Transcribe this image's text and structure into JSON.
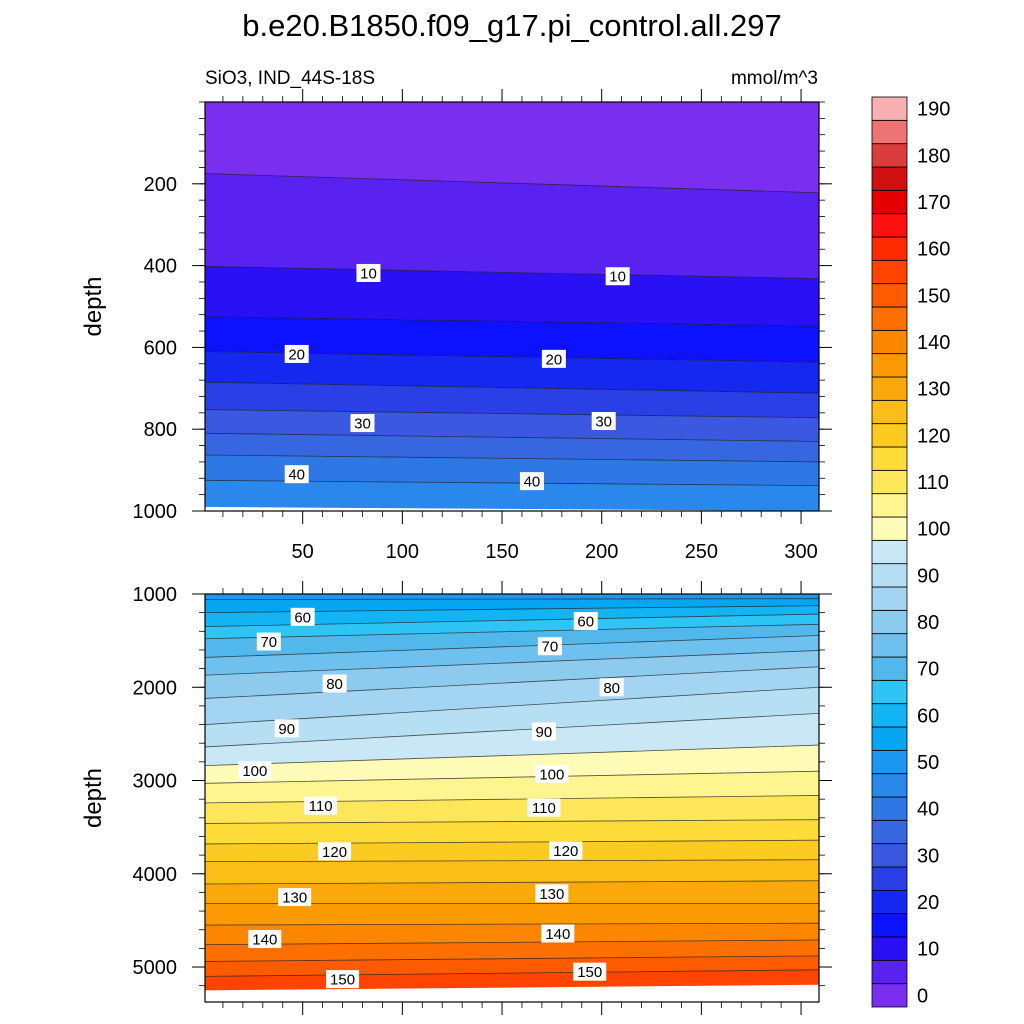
{
  "chart_data": {
    "type": "contour",
    "title": "b.e20.B1850.f09_g17.pi_control.all.297",
    "left_string": "SiO3, IND_44S-18S",
    "right_string": "mmol/m^3",
    "ylabel": "depth",
    "xlim": [
      1,
      309
    ],
    "x_ticks": [
      50,
      100,
      150,
      200,
      250,
      300
    ],
    "panels": [
      {
        "name": "upper",
        "ylim": [
          0,
          1000
        ],
        "y_ticks": [
          200,
          400,
          600,
          800,
          1000
        ],
        "contour_levels": [
          0,
          5,
          10,
          15,
          20,
          25,
          30,
          35,
          40,
          45
        ],
        "contour_depth_at_x1": [
          0,
          175,
          402,
          525,
          610,
          685,
          752,
          810,
          863,
          925,
          990
        ],
        "contour_depth_at_x309": [
          0,
          222,
          432,
          548,
          636,
          712,
          772,
          830,
          880,
          938,
          1000
        ],
        "labels": [
          {
            "text": "10",
            "x": 83,
            "depth": 418
          },
          {
            "text": "10",
            "x": 208,
            "depth": 426
          },
          {
            "text": "20",
            "x": 47,
            "depth": 616
          },
          {
            "text": "20",
            "x": 176,
            "depth": 628
          },
          {
            "text": "30",
            "x": 80,
            "depth": 785
          },
          {
            "text": "30",
            "x": 201,
            "depth": 780
          },
          {
            "text": "40",
            "x": 47,
            "depth": 910
          },
          {
            "text": "40",
            "x": 165,
            "depth": 927
          }
        ]
      },
      {
        "name": "lower",
        "ylim": [
          1000,
          5375
        ],
        "y_ticks": [
          1000,
          2000,
          3000,
          4000,
          5000
        ],
        "contour_levels": [
          50,
          55,
          60,
          65,
          70,
          75,
          80,
          85,
          90,
          95,
          100,
          105,
          110,
          115,
          120,
          125,
          130,
          135,
          140,
          145,
          150,
          155
        ],
        "contour_depth_at_x1": [
          1000,
          1060,
          1200,
          1350,
          1480,
          1680,
          1870,
          2120,
          2400,
          2640,
          2840,
          3030,
          3240,
          3460,
          3680,
          3870,
          4110,
          4320,
          4550,
          4760,
          4940,
          5100,
          5250
        ],
        "contour_depth_at_x309": [
          1000,
          1050,
          1125,
          1215,
          1325,
          1445,
          1605,
          1780,
          2000,
          2280,
          2620,
          2900,
          3160,
          3420,
          3640,
          3850,
          4075,
          4320,
          4530,
          4710,
          4880,
          5030,
          5190
        ],
        "labels": [
          {
            "text": "60",
            "x": 50,
            "depth": 1245
          },
          {
            "text": "60",
            "x": 192,
            "depth": 1290
          },
          {
            "text": "70",
            "x": 33,
            "depth": 1510
          },
          {
            "text": "70",
            "x": 174,
            "depth": 1560
          },
          {
            "text": "80",
            "x": 66,
            "depth": 1960
          },
          {
            "text": "80",
            "x": 205,
            "depth": 2000
          },
          {
            "text": "90",
            "x": 42,
            "depth": 2440
          },
          {
            "text": "90",
            "x": 171,
            "depth": 2475
          },
          {
            "text": "100",
            "x": 26,
            "depth": 2890
          },
          {
            "text": "100",
            "x": 175,
            "depth": 2930
          },
          {
            "text": "110",
            "x": 59,
            "depth": 3270
          },
          {
            "text": "110",
            "x": 171,
            "depth": 3290
          },
          {
            "text": "120",
            "x": 66,
            "depth": 3760
          },
          {
            "text": "120",
            "x": 182,
            "depth": 3750
          },
          {
            "text": "130",
            "x": 46,
            "depth": 4250
          },
          {
            "text": "130",
            "x": 175,
            "depth": 4210
          },
          {
            "text": "140",
            "x": 31,
            "depth": 4700
          },
          {
            "text": "140",
            "x": 178,
            "depth": 4640
          },
          {
            "text": "150",
            "x": 70,
            "depth": 5130
          },
          {
            "text": "150",
            "x": 194,
            "depth": 5050
          }
        ]
      }
    ],
    "colorbar": {
      "levels": [
        0,
        5,
        10,
        15,
        20,
        25,
        30,
        35,
        40,
        45,
        50,
        55,
        60,
        65,
        70,
        75,
        80,
        85,
        90,
        95,
        100,
        105,
        110,
        115,
        120,
        125,
        130,
        135,
        140,
        145,
        150,
        155,
        160,
        165,
        170,
        175,
        180,
        185,
        190
      ],
      "tick_labels": [
        "0",
        "10",
        "20",
        "30",
        "40",
        "50",
        "60",
        "70",
        "80",
        "90",
        "100",
        "110",
        "120",
        "130",
        "140",
        "150",
        "160",
        "170",
        "180",
        "190"
      ],
      "colors": [
        "#7a2ef0",
        "#5a22f0",
        "#2a10f5",
        "#0c12ff",
        "#1428f0",
        "#2a3fe6",
        "#3a58e0",
        "#3767e0",
        "#2e78e6",
        "#2a87ec",
        "#1c98f2",
        "#06a6f2",
        "#12b4f4",
        "#2ec4f6",
        "#52b7ea",
        "#6ec0ee",
        "#8ccbee",
        "#a3d5f2",
        "#b6dff4",
        "#c9e7f5",
        "#fefbb6",
        "#fef490",
        "#fee65a",
        "#fddb38",
        "#fbcb22",
        "#fbbd18",
        "#fba90a",
        "#fc9a04",
        "#fd8600",
        "#fd7000",
        "#fe5a00",
        "#fe4400",
        "#ff2b00",
        "#fe1010",
        "#e40000",
        "#d01010",
        "#dd3c3c",
        "#ee7474",
        "#f8b0b0"
      ]
    }
  }
}
